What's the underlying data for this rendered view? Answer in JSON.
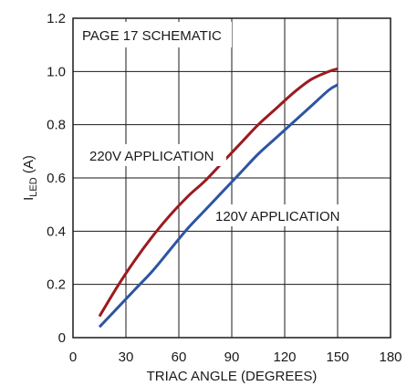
{
  "chart_data": {
    "type": "line",
    "xlabel": "TRIAC ANGLE (DEGREES)",
    "ylabel": {
      "main": "I",
      "sub": "LED",
      "unit": " (A)"
    },
    "xlim": [
      0,
      180
    ],
    "ylim": [
      0,
      1.2
    ],
    "x_ticks": [
      "0",
      "30",
      "60",
      "90",
      "120",
      "150",
      "180"
    ],
    "y_ticks": [
      "0",
      "0.2",
      "0.4",
      "0.6",
      "0.8",
      "1.0",
      "1.2"
    ],
    "grid": true,
    "annotations": {
      "box_label": "PAGE 17 SCHEMATIC",
      "series_220_label": "220V APPLICATION",
      "series_120_label": "120V APPLICATION"
    },
    "series": [
      {
        "name": "220V APPLICATION",
        "color": "#9b1b1f",
        "x": [
          15,
          25,
          35,
          45,
          55,
          65,
          75,
          85,
          95,
          105,
          115,
          125,
          135,
          145,
          150
        ],
        "y": [
          0.08,
          0.19,
          0.29,
          0.38,
          0.46,
          0.53,
          0.59,
          0.66,
          0.73,
          0.8,
          0.86,
          0.92,
          0.97,
          1.0,
          1.01
        ]
      },
      {
        "name": "120V APPLICATION",
        "color": "#2d55a0",
        "x": [
          15,
          25,
          35,
          45,
          55,
          65,
          75,
          85,
          95,
          105,
          115,
          125,
          135,
          145,
          150
        ],
        "y": [
          0.04,
          0.11,
          0.18,
          0.25,
          0.33,
          0.41,
          0.48,
          0.55,
          0.62,
          0.69,
          0.75,
          0.81,
          0.87,
          0.93,
          0.95
        ]
      }
    ]
  }
}
